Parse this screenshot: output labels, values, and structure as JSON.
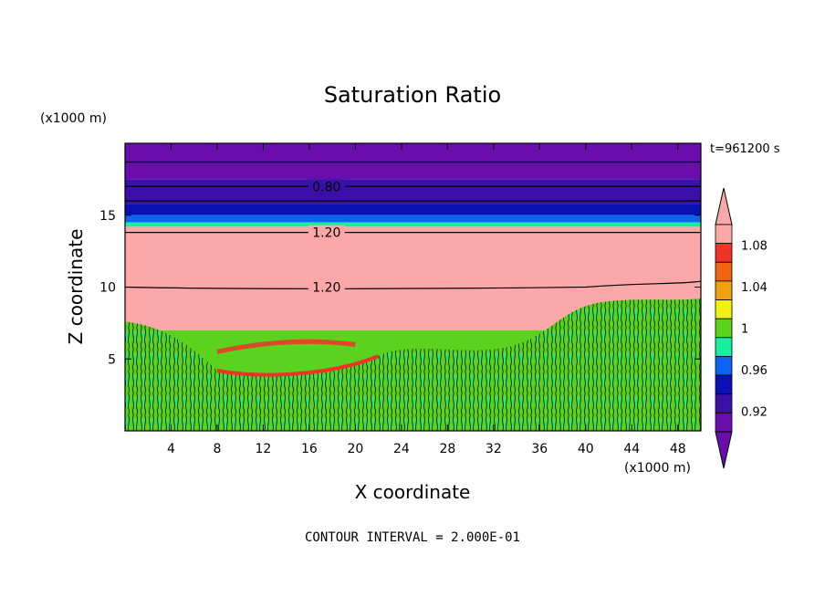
{
  "chart_data": {
    "type": "heatmap",
    "title": "Saturation Ratio",
    "xlabel": "X coordinate",
    "ylabel": "Z coordinate",
    "x_unit": "(x1000 m)",
    "y_unit": "(x1000 m)",
    "xlim": [
      0,
      50
    ],
    "ylim": [
      0,
      20
    ],
    "x_ticks": [
      4,
      8,
      12,
      16,
      20,
      24,
      28,
      32,
      36,
      40,
      44,
      48
    ],
    "x_tick_labels": [
      "4",
      "8",
      "12",
      "16",
      "20",
      "24",
      "28",
      "32",
      "36",
      "40",
      "44",
      "48"
    ],
    "y_ticks": [
      5,
      10,
      15
    ],
    "y_tick_labels": [
      "5",
      "10",
      "15"
    ],
    "time_label": "t=961200 s",
    "footer": "CONTOUR INTERVAL = 2.000E-01",
    "contour_labels": [
      {
        "text": "0.80",
        "x": 17.5,
        "z": 17.0
      },
      {
        "text": "1.20",
        "x": 17.5,
        "z": 13.8
      },
      {
        "text": "1.20",
        "x": 17.5,
        "z": 10.0
      }
    ],
    "colorbar": {
      "levels": [
        0.92,
        0.94,
        0.96,
        0.98,
        1.0,
        1.02,
        1.04,
        1.06,
        1.08
      ],
      "labels": [
        "1.08",
        "1.04",
        "1",
        "0.96",
        "0.92"
      ],
      "label_values": [
        1.08,
        1.04,
        1.0,
        0.96,
        0.92
      ],
      "colors": [
        "#6a0dad",
        "#3a10a8",
        "#0a10b4",
        "#0a64f0",
        "#14f0a0",
        "#5ad21e",
        "#f0f014",
        "#f0a014",
        "#f06414",
        "#f03228",
        "#fca8a8"
      ],
      "under_color": "#6a0dad",
      "over_color": "#fca8a8"
    },
    "bands": [
      {
        "z0": 17.5,
        "z1": 20.0,
        "value": 0.8,
        "color": "#6a0dad"
      },
      {
        "z0": 15.8,
        "z1": 17.5,
        "value": 0.85,
        "color": "#3a10a8"
      },
      {
        "z0": 15.0,
        "z1": 15.8,
        "value": 0.9,
        "color": "#0a10b4"
      },
      {
        "z0": 14.5,
        "z1": 15.0,
        "value": 0.96,
        "color": "#0a64f0"
      },
      {
        "z0": 14.2,
        "z1": 14.5,
        "value": 1.0,
        "color": "#14f0a0"
      },
      {
        "z0": 7.0,
        "z1": 14.2,
        "value": 1.2,
        "color": "#fca8a8"
      },
      {
        "z0": 0.0,
        "z1": 7.0,
        "value": 1.0,
        "color": "#5ad21e"
      }
    ]
  }
}
